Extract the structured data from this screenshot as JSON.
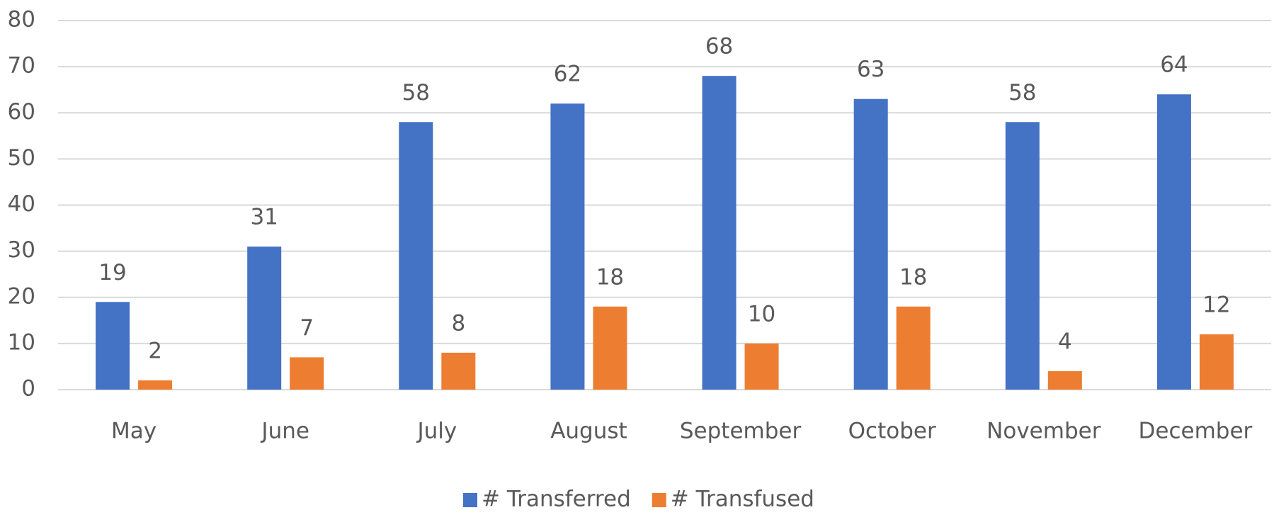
{
  "chart_data": {
    "type": "bar",
    "categories": [
      "May",
      "June",
      "July",
      "August",
      "September",
      "October",
      "November",
      "December"
    ],
    "series": [
      {
        "name": "# Transferred",
        "color": "#4472c4",
        "values": [
          19,
          31,
          58,
          62,
          68,
          63,
          58,
          64
        ]
      },
      {
        "name": "# Transfused",
        "color": "#ed7d31",
        "values": [
          2,
          7,
          8,
          18,
          10,
          18,
          4,
          12
        ]
      }
    ],
    "ylim": [
      0,
      80
    ],
    "yticks": [
      0,
      10,
      20,
      30,
      40,
      50,
      60,
      70,
      80
    ],
    "grid": true,
    "legend": "bottom"
  }
}
